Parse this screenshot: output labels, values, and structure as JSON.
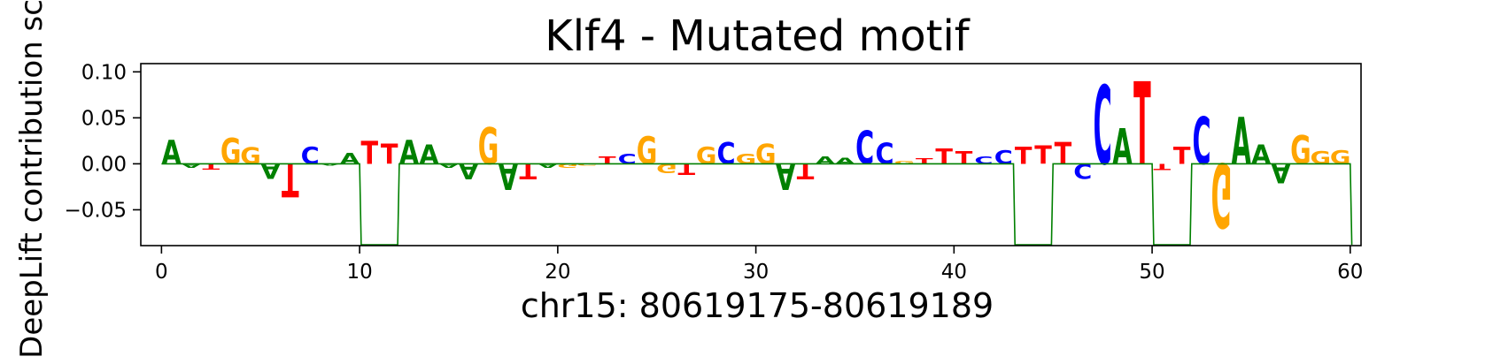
{
  "chart_data": {
    "type": "sequence-logo",
    "title": "Klf4 - Mutated motif",
    "xlabel": "chr15: 80619175-80619189",
    "ylabel": "DeepLift contribution score",
    "xlim": [
      -1,
      60.5
    ],
    "ylim": [
      -0.088,
      0.108
    ],
    "xticks": [
      0,
      10,
      20,
      30,
      40,
      50,
      60
    ],
    "yticks": [
      -0.05,
      0.0,
      0.05,
      0.1
    ],
    "ytick_labels": [
      "−0.05",
      "0.00",
      "0.05",
      "0.10"
    ],
    "colors": {
      "A": "#008000",
      "C": "#0000ff",
      "G": "#ffa500",
      "T": "#ff0000",
      "trace": "#008000"
    },
    "letters": [
      {
        "pos": 0.5,
        "base": "A",
        "value": 0.026
      },
      {
        "pos": 1.5,
        "base": "A",
        "value": -0.004
      },
      {
        "pos": 2.5,
        "base": "T",
        "value": -0.006
      },
      {
        "pos": 3.5,
        "base": "G",
        "value": 0.028
      },
      {
        "pos": 4.5,
        "base": "G",
        "value": 0.018
      },
      {
        "pos": 5.5,
        "base": "A",
        "value": -0.016
      },
      {
        "pos": 6.5,
        "base": "T",
        "value": -0.036
      },
      {
        "pos": 7.5,
        "base": "C",
        "value": 0.019
      },
      {
        "pos": 8.5,
        "base": "A",
        "value": -0.002
      },
      {
        "pos": 9.5,
        "base": "A",
        "value": 0.012
      },
      {
        "pos": 10.5,
        "base": "T",
        "value": 0.025
      },
      {
        "pos": 11.5,
        "base": "T",
        "value": 0.022
      },
      {
        "pos": 12.5,
        "base": "A",
        "value": 0.026
      },
      {
        "pos": 13.5,
        "base": "A",
        "value": 0.021
      },
      {
        "pos": 14.5,
        "base": "A",
        "value": -0.004
      },
      {
        "pos": 15.5,
        "base": "A",
        "value": -0.017
      },
      {
        "pos": 16.5,
        "base": "G",
        "value": 0.04
      },
      {
        "pos": 17.5,
        "base": "A",
        "value": -0.028
      },
      {
        "pos": 18.5,
        "base": "T",
        "value": -0.017
      },
      {
        "pos": 19.5,
        "base": "A",
        "value": -0.004
      },
      {
        "pos": 20.5,
        "base": "G",
        "value": -0.004
      },
      {
        "pos": 21.5,
        "base": "G",
        "value": -0.002
      },
      {
        "pos": 22.5,
        "base": "T",
        "value": 0.008
      },
      {
        "pos": 23.5,
        "base": "C",
        "value": 0.011
      },
      {
        "pos": 24.5,
        "base": "G",
        "value": 0.03
      },
      {
        "pos": 25.5,
        "base": "G",
        "value": -0.01
      },
      {
        "pos": 26.5,
        "base": "T",
        "value": -0.012
      },
      {
        "pos": 27.5,
        "base": "G",
        "value": 0.019
      },
      {
        "pos": 28.5,
        "base": "C",
        "value": 0.024
      },
      {
        "pos": 29.5,
        "base": "G",
        "value": 0.011
      },
      {
        "pos": 30.5,
        "base": "G",
        "value": 0.022
      },
      {
        "pos": 31.5,
        "base": "A",
        "value": -0.028
      },
      {
        "pos": 32.5,
        "base": "T",
        "value": -0.017
      },
      {
        "pos": 33.5,
        "base": "A",
        "value": 0.008
      },
      {
        "pos": 34.5,
        "base": "A",
        "value": 0.007
      },
      {
        "pos": 35.5,
        "base": "C",
        "value": 0.036
      },
      {
        "pos": 36.5,
        "base": "C",
        "value": 0.023
      },
      {
        "pos": 37.5,
        "base": "G",
        "value": 0.003
      },
      {
        "pos": 38.5,
        "base": "T",
        "value": 0.006
      },
      {
        "pos": 39.5,
        "base": "T",
        "value": 0.017
      },
      {
        "pos": 40.5,
        "base": "T",
        "value": 0.014
      },
      {
        "pos": 41.5,
        "base": "C",
        "value": 0.008
      },
      {
        "pos": 42.5,
        "base": "C",
        "value": 0.015
      },
      {
        "pos": 43.5,
        "base": "T",
        "value": 0.019
      },
      {
        "pos": 44.5,
        "base": "T",
        "value": 0.02
      },
      {
        "pos": 45.5,
        "base": "T",
        "value": 0.024
      },
      {
        "pos": 46.5,
        "base": "C",
        "value": -0.016
      },
      {
        "pos": 47.5,
        "base": "C",
        "value": 0.086
      },
      {
        "pos": 48.5,
        "base": "A",
        "value": 0.039
      },
      {
        "pos": 49.5,
        "base": "T",
        "value": 0.09
      },
      {
        "pos": 50.5,
        "base": "T",
        "value": -0.007
      },
      {
        "pos": 51.5,
        "base": "T",
        "value": 0.019
      },
      {
        "pos": 52.5,
        "base": "C",
        "value": 0.051
      },
      {
        "pos": 53.5,
        "base": "G",
        "value": -0.07
      },
      {
        "pos": 54.5,
        "base": "A",
        "value": 0.051
      },
      {
        "pos": 55.5,
        "base": "A",
        "value": 0.021
      },
      {
        "pos": 56.5,
        "base": "A",
        "value": -0.021
      },
      {
        "pos": 57.5,
        "base": "G",
        "value": 0.031
      },
      {
        "pos": 58.5,
        "base": "G",
        "value": 0.014
      },
      {
        "pos": 59.5,
        "base": "G",
        "value": 0.015
      }
    ],
    "trace": [
      [
        0,
        0
      ],
      [
        10,
        0
      ],
      [
        10.08,
        -0.088
      ],
      [
        11.92,
        -0.088
      ],
      [
        12,
        0
      ],
      [
        43,
        0
      ],
      [
        43.08,
        -0.088
      ],
      [
        44.92,
        -0.088
      ],
      [
        45,
        0
      ],
      [
        50,
        0
      ],
      [
        50.08,
        -0.088
      ],
      [
        51.92,
        -0.088
      ],
      [
        52,
        0
      ],
      [
        60,
        0
      ],
      [
        60.08,
        -0.088
      ]
    ]
  }
}
